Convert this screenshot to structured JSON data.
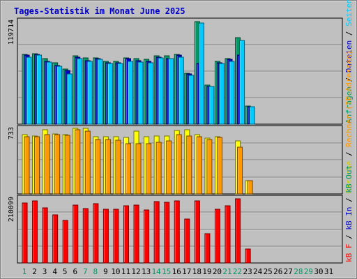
{
  "chart_data": [
    {
      "panel": "hits",
      "type": "bar",
      "title": "Tages-Statistik im Monat June 2025",
      "ymax_label": "119714",
      "ylim": [
        0,
        119714
      ],
      "categories": [
        "1",
        "2",
        "3",
        "4",
        "5",
        "6",
        "7",
        "8",
        "9",
        "10",
        "11",
        "12",
        "13",
        "14",
        "15",
        "16",
        "17",
        "18",
        "19",
        "20",
        "21",
        "22",
        "23",
        "24",
        "25",
        "26",
        "27",
        "28",
        "29",
        "30",
        "31"
      ],
      "series": [
        {
          "name": "Anfragen",
          "color": "#009966",
          "values": [
            81000,
            82000,
            76000,
            71000,
            64000,
            79000,
            77000,
            77000,
            73000,
            73000,
            77000,
            76000,
            75000,
            79000,
            79000,
            81000,
            59000,
            119000,
            45000,
            73000,
            76000,
            100000,
            21000,
            0,
            0,
            0,
            0,
            0,
            0,
            0,
            0
          ]
        },
        {
          "name": "Dateien",
          "color": "#0000cc",
          "values": [
            80000,
            81000,
            73000,
            68000,
            62000,
            78000,
            74000,
            76000,
            71000,
            71000,
            76000,
            74000,
            73000,
            78000,
            76000,
            80000,
            58000,
            70000,
            44000,
            71000,
            75000,
            80000,
            20000,
            0,
            0,
            0,
            0,
            0,
            0,
            0,
            0
          ]
        },
        {
          "name": "Seiten",
          "color": "#00ccff",
          "values": [
            78000,
            80000,
            72000,
            67000,
            58000,
            76000,
            73000,
            75000,
            70000,
            70000,
            73000,
            72000,
            71000,
            77000,
            76000,
            78000,
            57000,
            117000,
            44000,
            70000,
            73000,
            97000,
            20000,
            0,
            0,
            0,
            0,
            0,
            0,
            0,
            0
          ]
        }
      ]
    },
    {
      "panel": "visits",
      "type": "bar",
      "ymax_label": "733",
      "ylim": [
        0,
        733
      ],
      "series": [
        {
          "name": "Besuche",
          "color": "#ffff00",
          "values": [
            660,
            650,
            720,
            670,
            660,
            730,
            730,
            640,
            640,
            640,
            630,
            700,
            640,
            650,
            650,
            710,
            720,
            660,
            620,
            640,
            0,
            590,
            150,
            0,
            0,
            0,
            0,
            0,
            0,
            0,
            0
          ]
        },
        {
          "name": "Rechner (IP-Adressen)",
          "color": "#ff9900",
          "values": [
            640,
            640,
            660,
            660,
            655,
            720,
            700,
            610,
            610,
            600,
            560,
            560,
            560,
            580,
            590,
            660,
            650,
            640,
            610,
            630,
            0,
            520,
            150,
            0,
            0,
            0,
            0,
            0,
            0,
            0,
            0
          ]
        }
      ]
    },
    {
      "panel": "kbytes",
      "type": "bar",
      "ymax_label": "210099",
      "ylim": [
        0,
        210099
      ],
      "series": [
        {
          "name": "kB F",
          "color": "#ff0000",
          "values": [
            195000,
            202000,
            178000,
            157000,
            137000,
            187000,
            176000,
            191000,
            175000,
            175000,
            186000,
            187000,
            172000,
            198000,
            196000,
            202000,
            142000,
            202000,
            96000,
            175000,
            186000,
            208000,
            45000,
            0,
            0,
            0,
            0,
            0,
            0,
            0,
            0
          ]
        }
      ]
    }
  ],
  "x_labels": [
    {
      "text": "1",
      "weekend": true
    },
    {
      "text": "2",
      "weekend": false
    },
    {
      "text": "3",
      "weekend": false
    },
    {
      "text": "4",
      "weekend": false
    },
    {
      "text": "5",
      "weekend": false
    },
    {
      "text": "6",
      "weekend": false
    },
    {
      "text": "7",
      "weekend": true
    },
    {
      "text": "8",
      "weekend": true
    },
    {
      "text": "9",
      "weekend": false
    },
    {
      "text": "10",
      "weekend": false
    },
    {
      "text": "11",
      "weekend": false
    },
    {
      "text": "12",
      "weekend": false
    },
    {
      "text": "13",
      "weekend": false
    },
    {
      "text": "14",
      "weekend": true
    },
    {
      "text": "15",
      "weekend": true
    },
    {
      "text": "16",
      "weekend": false
    },
    {
      "text": "17",
      "weekend": false
    },
    {
      "text": "18",
      "weekend": false
    },
    {
      "text": "19",
      "weekend": false
    },
    {
      "text": "20",
      "weekend": false
    },
    {
      "text": "21",
      "weekend": true
    },
    {
      "text": "22",
      "weekend": true
    },
    {
      "text": "23",
      "weekend": false
    },
    {
      "text": "24",
      "weekend": false
    },
    {
      "text": "25",
      "weekend": false
    },
    {
      "text": "26",
      "weekend": false
    },
    {
      "text": "27",
      "weekend": false
    },
    {
      "text": "28",
      "weekend": true
    },
    {
      "text": "29",
      "weekend": true
    },
    {
      "text": "30",
      "weekend": false
    },
    {
      "text": "31",
      "weekend": false
    }
  ],
  "legend_right": [
    {
      "panel": 0,
      "parts": [
        {
          "text": "Anfragen",
          "color": "#009966"
        },
        {
          "text": " / ",
          "color": "#000000"
        },
        {
          "text": "Dateien",
          "color": "#0000cc"
        },
        {
          "text": " / ",
          "color": "#000000"
        },
        {
          "text": "Seiten",
          "color": "#00ccff"
        }
      ]
    },
    {
      "panel": 1,
      "parts": [
        {
          "text": "Besuche",
          "color": "#cccc00"
        },
        {
          "text": " / ",
          "color": "#000000"
        },
        {
          "text": "Rechner (IP-Adressen)",
          "color": "#ff9900"
        }
      ]
    },
    {
      "panel": 2,
      "parts": [
        {
          "text": "kB F",
          "color": "#ff0000"
        },
        {
          "text": " / ",
          "color": "#000000"
        },
        {
          "text": "kB In",
          "color": "#0000cc"
        },
        {
          "text": " / ",
          "color": "#000000"
        },
        {
          "text": "kB Out",
          "color": "#009966"
        }
      ]
    }
  ],
  "colors": {
    "background": "#c0c0c0",
    "title": "#0000cc",
    "weekday_label": "#000000",
    "weekend_label": "#009966",
    "gridline": "#808080",
    "panel_border": "#000000"
  }
}
